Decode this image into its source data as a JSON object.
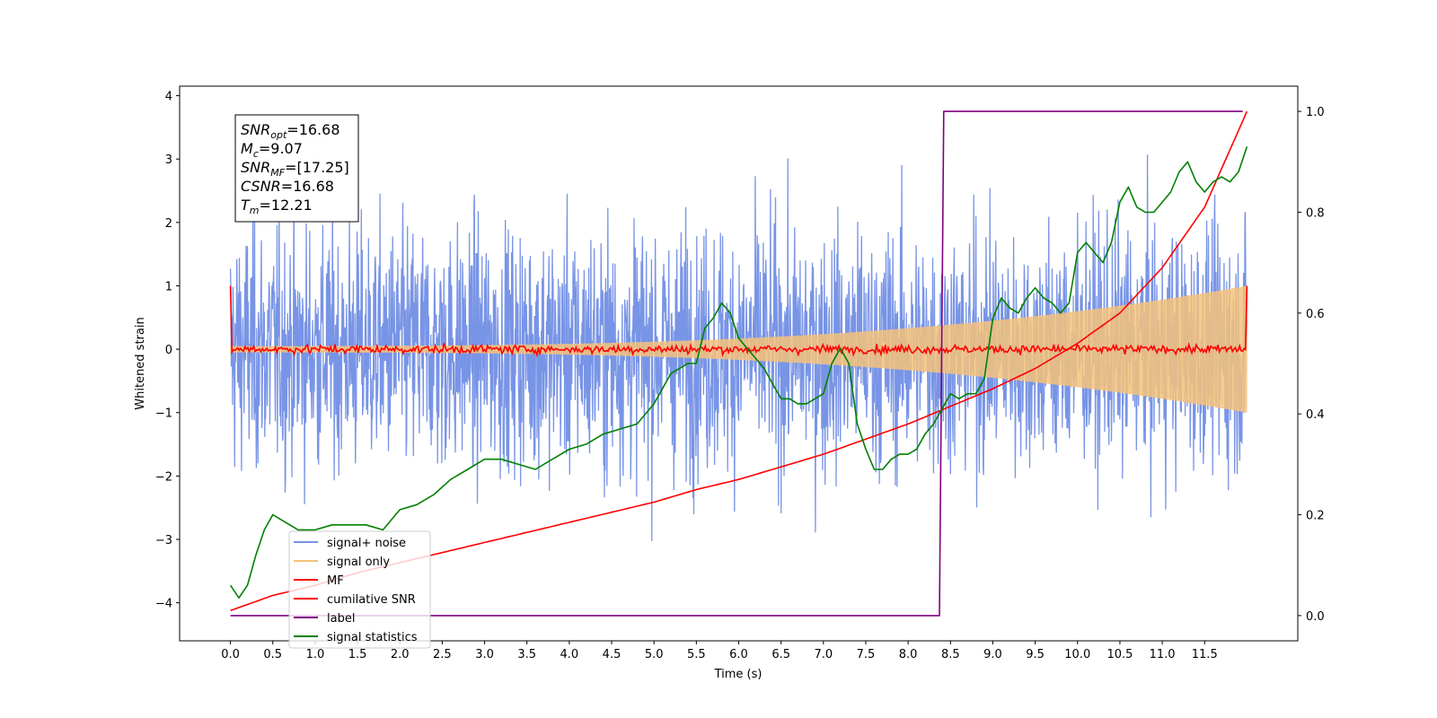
{
  "chart_data": {
    "type": "line",
    "xlabel": "Time (s)",
    "ylabel": "Whitened strain",
    "x_ticks": [
      0.0,
      0.5,
      1.0,
      1.5,
      2.0,
      2.5,
      3.0,
      3.5,
      4.0,
      4.5,
      5.0,
      5.5,
      6.0,
      6.5,
      7.0,
      7.5,
      8.0,
      8.5,
      9.0,
      9.5,
      10.0,
      10.5,
      11.0,
      11.5
    ],
    "x_tick_labels": [
      "0.0",
      "0.5",
      "1.0",
      "1.5",
      "2.0",
      "2.5",
      "3.0",
      "3.5",
      "4.0",
      "4.5",
      "5.0",
      "5.5",
      "6.0",
      "6.5",
      "7.0",
      "7.5",
      "8.0",
      "8.5",
      "9.0",
      "9.5",
      "10.0",
      "10.5",
      "11.0",
      "11.5"
    ],
    "xlim": [
      -0.6,
      12.6
    ],
    "ylim_left": [
      -4.6,
      4.15
    ],
    "y_ticks_left": [
      -4,
      -3,
      -2,
      -1,
      0,
      1,
      2,
      3,
      4
    ],
    "y_tick_labels_left": [
      "−4",
      "−3",
      "−2",
      "−1",
      "0",
      "1",
      "2",
      "3",
      "4"
    ],
    "ylim_right": [
      -0.05,
      1.05
    ],
    "y_ticks_right": [
      0.0,
      0.2,
      0.4,
      0.6,
      0.8,
      1.0
    ],
    "y_tick_labels_right": [
      "0.0",
      "0.2",
      "0.4",
      "0.6",
      "0.8",
      "1.0"
    ],
    "grid": false,
    "legend_position": "lower-left",
    "annotation": {
      "lines": [
        {
          "base": "SNR",
          "sub": "opt",
          "value": "=16.68"
        },
        {
          "base": "M",
          "sub": "c",
          "value": "=9.07"
        },
        {
          "base": "SNR",
          "sub": "MF",
          "value": "=[17.25]"
        },
        {
          "base": "CSNR",
          "sub": "",
          "value": "=16.68"
        },
        {
          "base": "T",
          "sub": "m",
          "value": "=12.21"
        }
      ]
    },
    "series": [
      {
        "name": "signal+ noise",
        "color": "#7894e6",
        "axis": "left",
        "style": "noise",
        "t_start": 0.0,
        "t_end": 12.0,
        "amplitude_sd": 1.0
      },
      {
        "name": "signal only",
        "color": "#f5c27a",
        "axis": "left",
        "style": "chirp",
        "t_start": 0.0,
        "t_end": 12.0,
        "amp_start": 0.05,
        "amp_end": 1.0
      },
      {
        "name": "MF",
        "color": "#ff0000",
        "axis": "left",
        "style": "mf",
        "t_start": 0.0,
        "t_end": 12.0,
        "start_value": 1.0,
        "end_value": 1.0,
        "level": 0.0
      },
      {
        "name": "cumilative SNR",
        "color": "#ff0000",
        "axis": "right",
        "x": [
          0.0,
          0.5,
          1.0,
          1.5,
          2.0,
          2.5,
          3.0,
          3.5,
          4.0,
          4.5,
          5.0,
          5.5,
          6.0,
          6.5,
          7.0,
          7.5,
          8.0,
          8.5,
          9.0,
          9.5,
          10.0,
          10.5,
          11.0,
          11.5,
          12.0
        ],
        "y": [
          0.01,
          0.04,
          0.06,
          0.085,
          0.105,
          0.125,
          0.145,
          0.165,
          0.185,
          0.205,
          0.225,
          0.25,
          0.27,
          0.295,
          0.32,
          0.35,
          0.38,
          0.415,
          0.45,
          0.49,
          0.54,
          0.6,
          0.69,
          0.81,
          1.0
        ]
      },
      {
        "name": "label",
        "color": "#800080",
        "axis": "right",
        "x": [
          0.0,
          8.37,
          8.42,
          11.95
        ],
        "y": [
          0.0,
          0.0,
          1.0,
          1.0
        ]
      },
      {
        "name": "signal statistics",
        "color": "#008000",
        "axis": "right",
        "x": [
          0.0,
          0.1,
          0.2,
          0.3,
          0.4,
          0.5,
          0.6,
          0.7,
          0.8,
          1.0,
          1.2,
          1.4,
          1.6,
          1.8,
          2.0,
          2.2,
          2.4,
          2.6,
          2.8,
          3.0,
          3.2,
          3.4,
          3.6,
          3.8,
          4.0,
          4.2,
          4.4,
          4.6,
          4.8,
          5.0,
          5.2,
          5.4,
          5.5,
          5.6,
          5.7,
          5.8,
          5.9,
          6.0,
          6.1,
          6.2,
          6.3,
          6.4,
          6.5,
          6.6,
          6.7,
          6.8,
          6.9,
          7.0,
          7.1,
          7.2,
          7.3,
          7.4,
          7.5,
          7.6,
          7.7,
          7.8,
          7.9,
          8.0,
          8.1,
          8.2,
          8.3,
          8.4,
          8.5,
          8.6,
          8.7,
          8.8,
          8.9,
          9.0,
          9.1,
          9.2,
          9.3,
          9.4,
          9.5,
          9.6,
          9.7,
          9.8,
          9.9,
          10.0,
          10.1,
          10.2,
          10.3,
          10.4,
          10.5,
          10.6,
          10.7,
          10.8,
          10.9,
          11.0,
          11.1,
          11.2,
          11.3,
          11.4,
          11.5,
          11.6,
          11.7,
          11.8,
          11.9,
          12.0
        ],
        "y": [
          0.06,
          0.035,
          0.06,
          0.12,
          0.17,
          0.2,
          0.19,
          0.18,
          0.17,
          0.17,
          0.18,
          0.18,
          0.18,
          0.17,
          0.21,
          0.22,
          0.24,
          0.27,
          0.29,
          0.31,
          0.31,
          0.3,
          0.29,
          0.31,
          0.33,
          0.34,
          0.36,
          0.37,
          0.38,
          0.42,
          0.48,
          0.5,
          0.5,
          0.57,
          0.59,
          0.62,
          0.6,
          0.55,
          0.53,
          0.51,
          0.49,
          0.46,
          0.43,
          0.43,
          0.42,
          0.42,
          0.43,
          0.44,
          0.5,
          0.53,
          0.5,
          0.38,
          0.33,
          0.29,
          0.29,
          0.31,
          0.32,
          0.32,
          0.33,
          0.36,
          0.38,
          0.41,
          0.44,
          0.43,
          0.44,
          0.44,
          0.47,
          0.59,
          0.63,
          0.61,
          0.6,
          0.63,
          0.65,
          0.63,
          0.62,
          0.6,
          0.62,
          0.72,
          0.74,
          0.72,
          0.7,
          0.74,
          0.82,
          0.85,
          0.81,
          0.8,
          0.8,
          0.82,
          0.84,
          0.88,
          0.9,
          0.86,
          0.84,
          0.86,
          0.87,
          0.86,
          0.88,
          0.93
        ]
      }
    ]
  }
}
